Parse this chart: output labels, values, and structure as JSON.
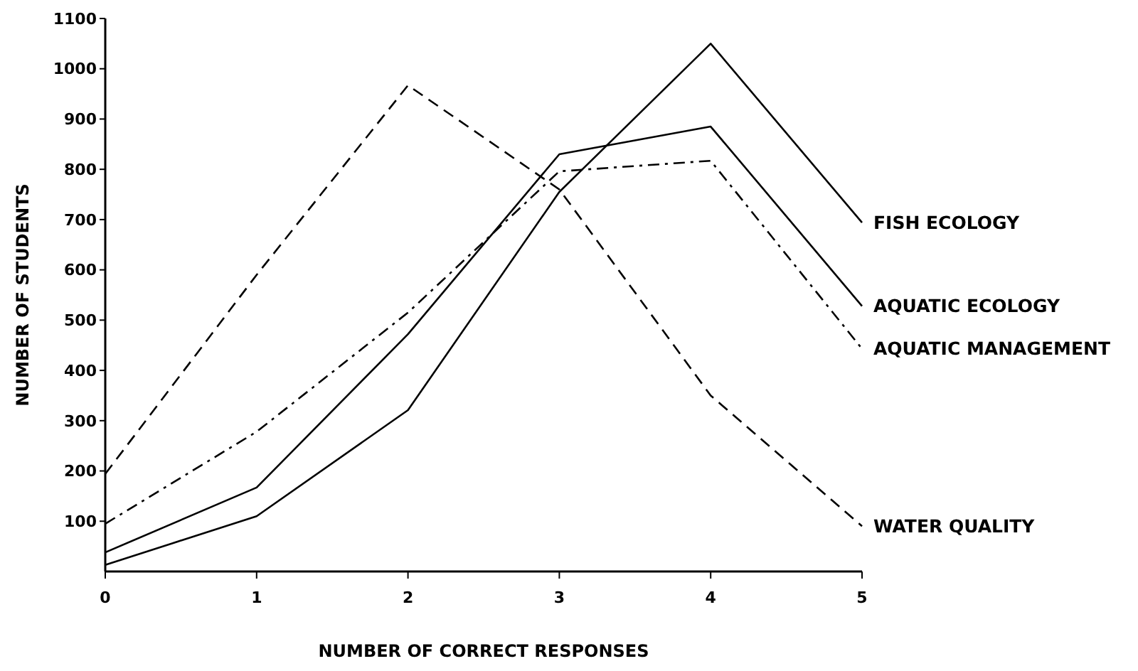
{
  "chart_data": {
    "type": "line",
    "xlabel": "NUMBER OF CORRECT RESPONSES",
    "ylabel": "NUMBER OF STUDENTS",
    "x": [
      0,
      1,
      2,
      3,
      4,
      5
    ],
    "xlim": [
      0,
      5
    ],
    "xticks": [
      0,
      1,
      2,
      3,
      4,
      5
    ],
    "ylim": [
      0,
      1100
    ],
    "yticks": [
      100,
      200,
      300,
      400,
      500,
      600,
      700,
      800,
      900,
      1000,
      1100
    ],
    "grid": false,
    "legend": false,
    "marker": "none",
    "series": [
      {
        "name": "FISH ECOLOGY",
        "color": "#000000",
        "line_style": "solid",
        "values": [
          13,
          110,
          321,
          755,
          1050,
          694
        ]
      },
      {
        "name": "AQUATIC ECOLOGY",
        "color": "#000000",
        "line_style": "solid",
        "values": [
          38,
          167,
          472,
          830,
          885,
          528
        ]
      },
      {
        "name": "AQUATIC MANAGEMENT",
        "color": "#000000",
        "line_style": "dashdot",
        "values": [
          95,
          278,
          515,
          796,
          817,
          443
        ]
      },
      {
        "name": "WATER QUALITY",
        "color": "#000000",
        "line_style": "dashed",
        "values": [
          194,
          590,
          967,
          760,
          350,
          90
        ]
      }
    ]
  }
}
